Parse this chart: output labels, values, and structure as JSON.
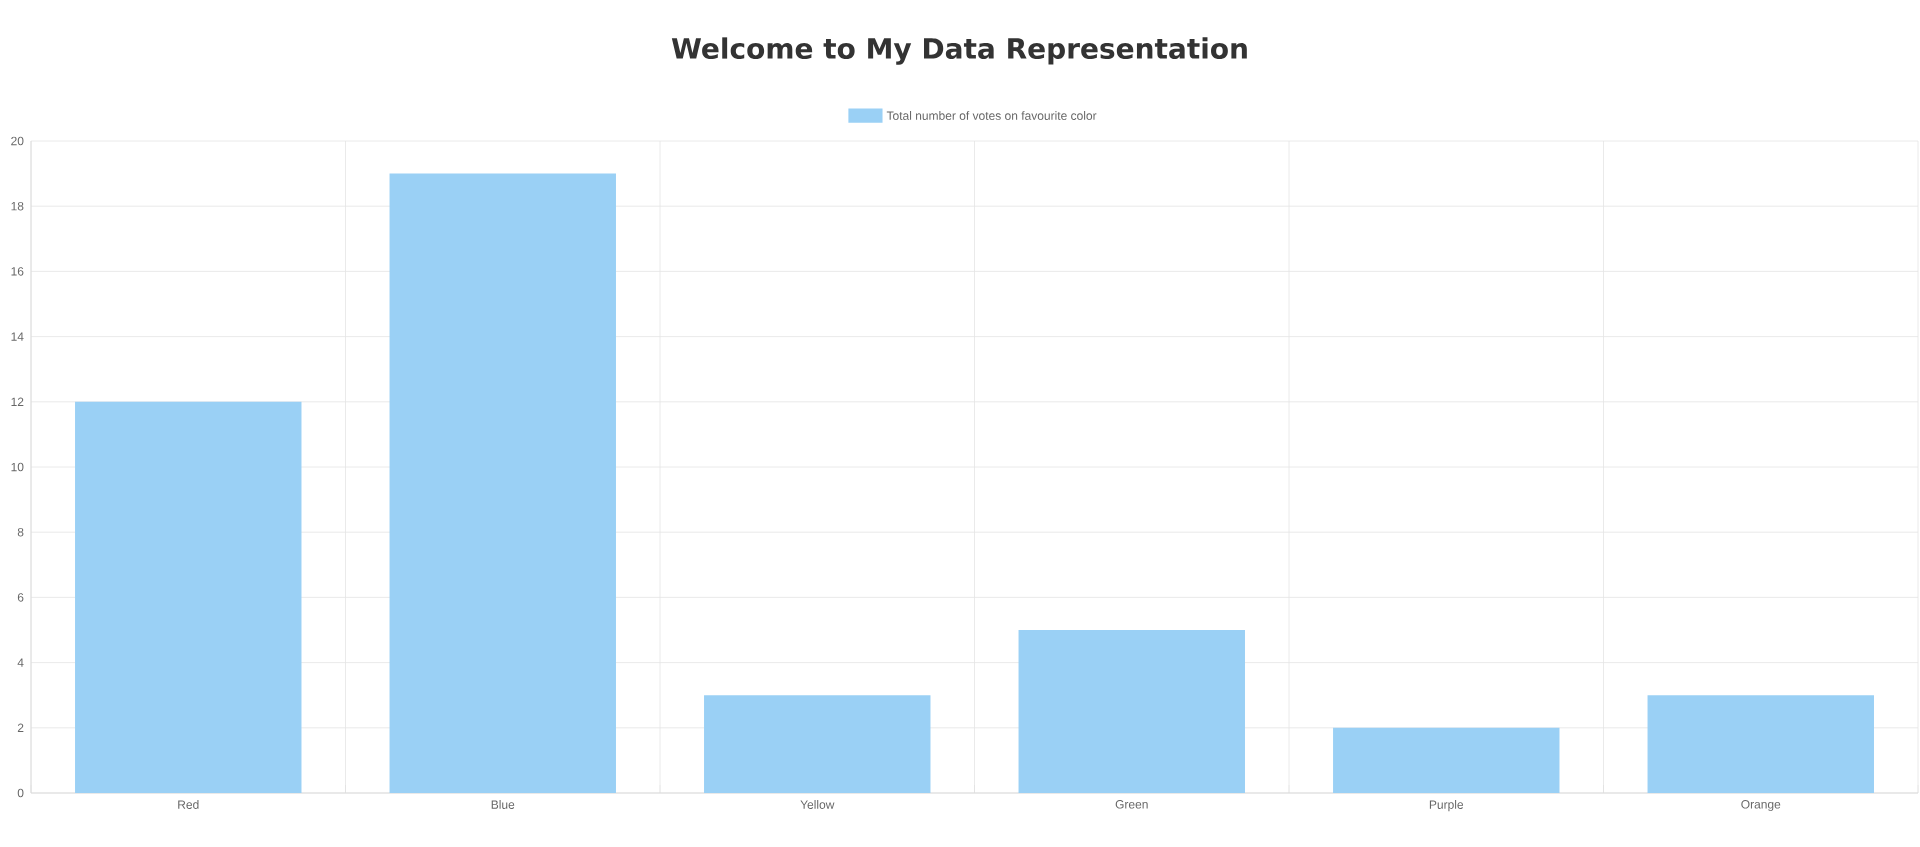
{
  "chart_data": {
    "type": "bar",
    "title": "Welcome to My Data Representation",
    "categories": [
      "Red",
      "Blue",
      "Yellow",
      "Green",
      "Purple",
      "Orange"
    ],
    "series": [
      {
        "name": "Total number of votes on favourite color",
        "color": "#9ad0f5",
        "values": [
          12,
          19,
          3,
          5,
          2,
          3
        ]
      }
    ],
    "ylim": [
      0,
      20
    ],
    "yticks": [
      0,
      2,
      4,
      6,
      8,
      10,
      12,
      14,
      16,
      18,
      20
    ],
    "grid": true,
    "legend": "top"
  }
}
